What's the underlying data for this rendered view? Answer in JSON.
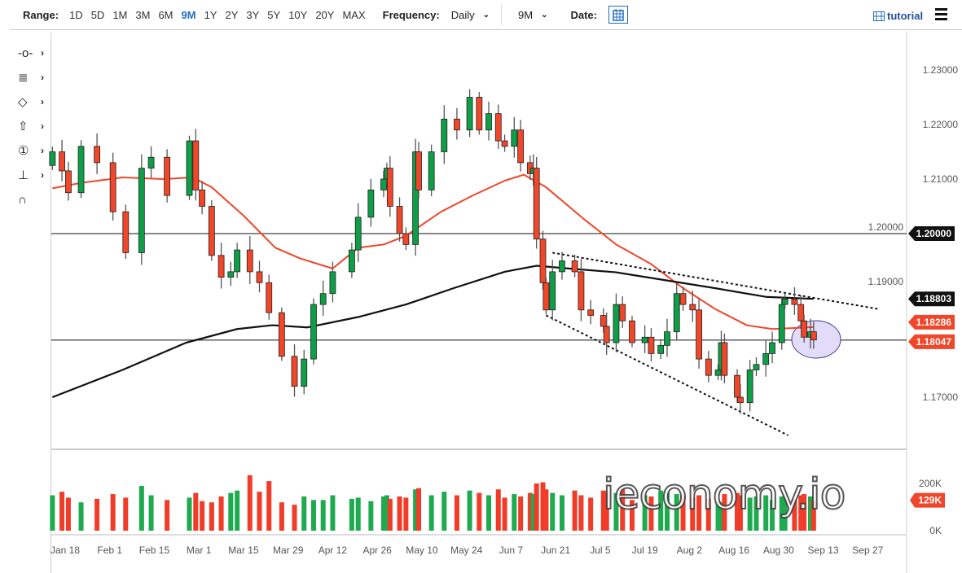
{
  "toolbar": {
    "range_label": "Range:",
    "ranges": [
      "1D",
      "5D",
      "1M",
      "3M",
      "6M",
      "9M",
      "1Y",
      "2Y",
      "3Y",
      "5Y",
      "10Y",
      "20Y",
      "MAX"
    ],
    "active_range": "9M",
    "frequency_label": "Frequency:",
    "frequency_value": "Daily",
    "period_value": "9M",
    "date_label": "Date:",
    "tutorial_label": "tutorial",
    "icons": [
      "calendar-icon",
      "film-icon",
      "hamburger-menu-icon"
    ]
  },
  "left_tools": [
    {
      "name": "line-tool",
      "glyph": "-o-"
    },
    {
      "name": "fib-tool",
      "glyph": "≣"
    },
    {
      "name": "shape-tool",
      "glyph": "◇"
    },
    {
      "name": "arrow-tool",
      "glyph": "⇧"
    },
    {
      "name": "annotation-tool",
      "glyph": "①"
    },
    {
      "name": "measure-tool",
      "glyph": "⊥"
    },
    {
      "name": "magnet-tool",
      "glyph": "∩"
    }
  ],
  "watermark": "ieconomy.io",
  "chart_data": {
    "type": "candlestick",
    "colors": {
      "up": "#0e9e48",
      "down": "#f0462a",
      "ma_fast": "#f0462a",
      "ma_slow": "#111111",
      "highlight": "#e2dcf8",
      "volume_up": "#1faa4f",
      "volume_down": "#f03c28"
    },
    "ylim": [
      1.163,
      1.233
    ],
    "y_ticks": [
      "1.23000",
      "1.22000",
      "1.21000",
      "1.20000",
      "1.19000",
      "1.17000"
    ],
    "x_ticks": [
      "Jan 18",
      "Feb 1",
      "Feb 15",
      "Mar 1",
      "Mar 15",
      "Mar 29",
      "Apr 12",
      "Apr 26",
      "May 10",
      "May 24",
      "Jun 7",
      "Jun 21",
      "Jul 5",
      "Jul 19",
      "Aug 2",
      "Aug 16",
      "Aug 30",
      "Sep 13",
      "Sep 27"
    ],
    "x_tick_dates": [
      "2021-01-18",
      "2021-02-01",
      "2021-02-15",
      "2021-03-01",
      "2021-03-15",
      "2021-03-29",
      "2021-04-12",
      "2021-04-26",
      "2021-05-10",
      "2021-05-24",
      "2021-06-07",
      "2021-06-21",
      "2021-07-05",
      "2021-07-19",
      "2021-08-02",
      "2021-08-16",
      "2021-08-30",
      "2021-09-13",
      "2021-09-27"
    ],
    "dates": [
      "2021-01-14",
      "2021-01-17",
      "2021-01-19",
      "2021-01-23",
      "2021-01-28",
      "2021-02-02",
      "2021-02-06",
      "2021-02-11",
      "2021-02-14",
      "2021-02-19",
      "2021-02-26",
      "2021-02-28",
      "2021-03-02",
      "2021-03-05",
      "2021-03-08",
      "2021-03-11",
      "2021-03-13",
      "2021-03-17",
      "2021-03-20",
      "2021-03-23",
      "2021-03-27",
      "2021-03-31",
      "2021-04-03",
      "2021-04-06",
      "2021-04-09",
      "2021-04-12",
      "2021-04-18",
      "2021-04-20",
      "2021-04-24",
      "2021-04-28",
      "2021-04-29",
      "2021-04-30",
      "2021-05-03",
      "2021-05-05",
      "2021-05-08",
      "2021-05-09",
      "2021-05-13",
      "2021-05-17",
      "2021-05-21",
      "2021-05-25",
      "2021-05-28",
      "2021-05-31",
      "2021-06-03",
      "2021-06-05",
      "2021-06-08",
      "2021-06-10",
      "2021-06-13",
      "2021-06-14",
      "2021-06-15",
      "2021-06-17",
      "2021-06-18",
      "2021-06-20",
      "2021-06-23",
      "2021-06-27",
      "2021-06-29",
      "2021-07-02",
      "2021-07-06",
      "2021-07-07",
      "2021-07-10",
      "2021-07-12",
      "2021-07-15",
      "2021-07-19",
      "2021-07-21",
      "2021-07-24",
      "2021-07-26",
      "2021-07-29",
      "2021-07-31",
      "2021-08-03",
      "2021-08-05",
      "2021-08-08",
      "2021-08-11",
      "2021-08-12",
      "2021-08-13",
      "2021-08-17",
      "2021-08-18",
      "2021-08-21",
      "2021-08-23",
      "2021-08-26",
      "2021-08-28",
      "2021-08-31",
      "2021-09-01",
      "2021-09-04",
      "2021-09-06",
      "2021-09-07",
      "2021-09-09",
      "2021-09-10"
    ],
    "close": [
      1.215,
      1.2115,
      1.2075,
      1.216,
      1.213,
      1.204,
      1.1965,
      1.212,
      1.214,
      1.207,
      1.217,
      1.208,
      1.205,
      1.196,
      1.192,
      1.193,
      1.197,
      1.193,
      1.191,
      1.1855,
      1.1775,
      1.172,
      1.177,
      1.187,
      1.189,
      1.193,
      1.197,
      1.203,
      1.208,
      1.21,
      1.212,
      1.205,
      1.2,
      1.198,
      1.215,
      1.208,
      1.215,
      1.221,
      1.219,
      1.225,
      1.219,
      1.222,
      1.217,
      1.216,
      1.219,
      1.213,
      1.211,
      1.212,
      1.199,
      1.191,
      1.186,
      1.193,
      1.195,
      1.193,
      1.186,
      1.185,
      1.183,
      1.18,
      1.187,
      1.184,
      1.18,
      1.181,
      1.178,
      1.1795,
      1.182,
      1.189,
      1.187,
      1.186,
      1.177,
      1.174,
      1.175,
      1.18,
      1.174,
      1.17,
      1.169,
      1.175,
      1.176,
      1.178,
      1.18,
      1.187,
      1.188,
      1.187,
      1.184,
      1.181,
      1.182,
      1.1805
    ],
    "volume_k": [
      150,
      165,
      140,
      120,
      135,
      155,
      140,
      190,
      150,
      130,
      140,
      160,
      125,
      120,
      145,
      160,
      170,
      235,
      165,
      210,
      120,
      110,
      145,
      130,
      130,
      150,
      135,
      140,
      125,
      145,
      150,
      135,
      145,
      140,
      175,
      180,
      150,
      165,
      150,
      170,
      160,
      150,
      175,
      140,
      155,
      145,
      160,
      155,
      200,
      205,
      175,
      160,
      150,
      170,
      150,
      140,
      170,
      165,
      160,
      175,
      130,
      150,
      145,
      170,
      165,
      155,
      150,
      140,
      150,
      135,
      125,
      120,
      155,
      160,
      150,
      140,
      145,
      150,
      130,
      145,
      150,
      135,
      150,
      155,
      145,
      129
    ],
    "ma_fast": [
      [
        "2021-01-14",
        1.2083
      ],
      [
        "2021-01-23",
        1.2093
      ],
      [
        "2021-02-05",
        1.2103
      ],
      [
        "2021-02-18",
        1.21
      ],
      [
        "2021-02-27",
        1.2103
      ],
      [
        "2021-03-05",
        1.2085
      ],
      [
        "2021-03-15",
        1.2033
      ],
      [
        "2021-03-25",
        1.1974
      ],
      [
        "2021-04-02",
        1.1954
      ],
      [
        "2021-04-12",
        1.1936
      ],
      [
        "2021-04-20",
        1.1974
      ],
      [
        "2021-04-28",
        1.198
      ],
      [
        "2021-05-05",
        1.1996
      ],
      [
        "2021-05-16",
        1.204
      ],
      [
        "2021-05-26",
        1.207
      ],
      [
        "2021-06-05",
        1.2097
      ],
      [
        "2021-06-11",
        1.2108
      ],
      [
        "2021-06-18",
        1.2085
      ],
      [
        "2021-06-30",
        1.2026
      ],
      [
        "2021-07-10",
        1.198
      ],
      [
        "2021-07-21",
        1.1944
      ],
      [
        "2021-07-31",
        1.19
      ],
      [
        "2021-08-10",
        1.1862
      ],
      [
        "2021-08-20",
        1.1832
      ],
      [
        "2021-08-28",
        1.1825
      ],
      [
        "2021-09-10",
        1.18286
      ]
    ],
    "ma_slow": [
      [
        "2021-01-14",
        1.17
      ],
      [
        "2021-02-05",
        1.175
      ],
      [
        "2021-02-25",
        1.18
      ],
      [
        "2021-03-13",
        1.1825
      ],
      [
        "2021-03-24",
        1.1832
      ],
      [
        "2021-04-04",
        1.1828
      ],
      [
        "2021-04-20",
        1.1847
      ],
      [
        "2021-05-05",
        1.187
      ],
      [
        "2021-05-20",
        1.19
      ],
      [
        "2021-06-05",
        1.193
      ],
      [
        "2021-06-15",
        1.1941
      ],
      [
        "2021-06-25",
        1.1936
      ],
      [
        "2021-07-10",
        1.1929
      ],
      [
        "2021-07-26",
        1.1914
      ],
      [
        "2021-08-10",
        1.19
      ],
      [
        "2021-08-26",
        1.1884
      ],
      [
        "2021-09-10",
        1.18803
      ]
    ],
    "horizontal_levels": [
      1.2,
      1.18047
    ],
    "trendlines": [
      {
        "style": "dotted",
        "points": [
          [
            "2021-06-20",
            1.1965
          ],
          [
            "2021-09-30",
            1.1862
          ]
        ]
      },
      {
        "style": "dotted",
        "points": [
          [
            "2021-06-18",
            1.185
          ],
          [
            "2021-09-02",
            1.163
          ]
        ]
      }
    ],
    "price_labels": [
      {
        "text": "1.20000",
        "value": 1.2,
        "color": "#111111"
      },
      {
        "text": "1.18803",
        "value": 1.18803,
        "color": "#111111"
      },
      {
        "text": "1.18286",
        "value": 1.18286,
        "color": "#f0462a"
      },
      {
        "text": "1.18047",
        "value": 1.18047,
        "color": "#f0462a"
      }
    ],
    "volume_ticks": [
      "200K",
      "0K"
    ],
    "volume_last_label": "129K"
  }
}
